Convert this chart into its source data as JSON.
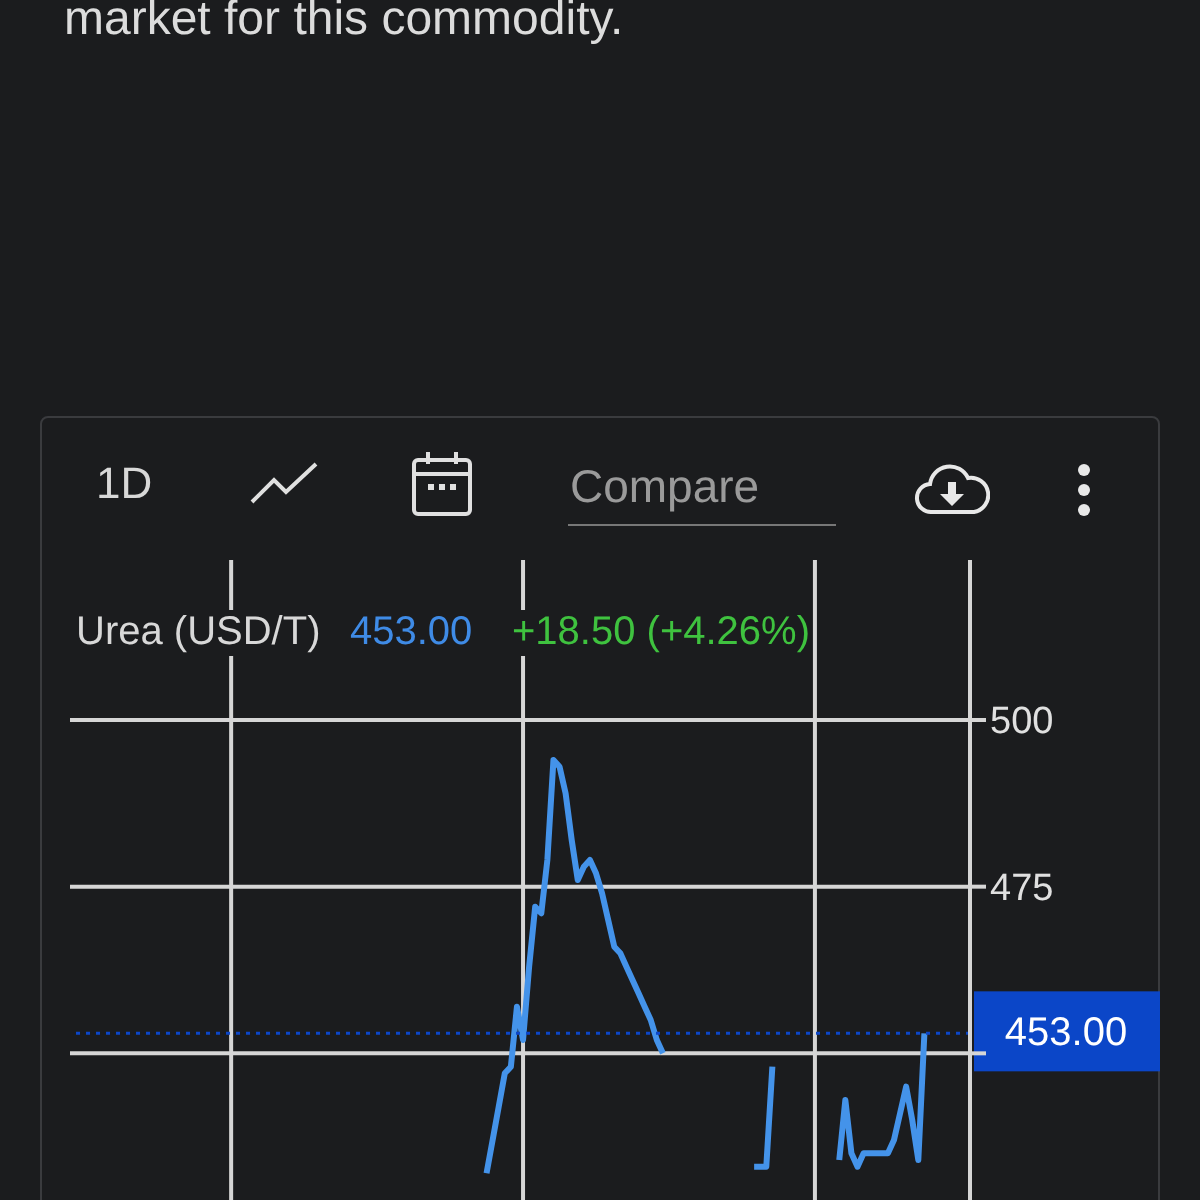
{
  "chart_data": {
    "type": "line",
    "title": "Urea (USD/T)",
    "annotations": [
      "market for this commodity.",
      "1D",
      "Compare",
      "453.00",
      "+18.50 (+4.26%)"
    ],
    "categories": [
      null,
      null,
      null,
      null,
      null,
      null,
      null,
      null,
      null,
      null,
      null,
      null,
      null,
      null,
      null,
      null,
      null,
      null,
      null,
      null,
      null,
      null,
      null,
      null,
      null,
      null,
      null,
      null,
      null,
      null,
      null,
      null,
      null,
      null,
      null,
      null,
      null,
      null,
      null,
      null,
      null,
      null,
      null,
      null,
      null,
      null,
      null,
      null,
      null,
      null,
      null,
      null,
      null,
      null,
      null,
      null,
      null,
      null,
      null,
      null,
      null,
      null,
      null,
      null,
      null,
      null,
      null,
      null,
      null,
      null,
      null,
      null,
      null,
      null,
      null,
      null,
      null,
      null,
      null,
      null,
      null,
      null,
      null,
      null,
      null,
      null,
      null,
      null,
      null,
      null,
      null,
      null,
      null,
      null,
      null,
      null,
      null,
      null,
      null,
      null,
      null,
      null,
      null,
      null,
      null,
      null,
      null,
      null,
      null,
      null,
      null,
      null,
      null,
      null,
      null,
      null,
      null,
      null,
      null,
      null,
      null,
      null,
      null,
      null,
      null,
      null,
      null,
      null,
      null,
      null,
      null,
      null,
      null,
      null,
      null,
      null,
      null,
      null,
      null,
      null,
      null,
      null,
      null,
      null,
      null,
      null,
      null,
      null
    ],
    "series": [
      {
        "color": "#4493ea",
        "values": [
          null,
          null,
          null,
          null,
          null,
          null,
          null,
          null,
          null,
          null,
          null,
          null,
          null,
          null,
          null,
          null,
          null,
          null,
          null,
          null,
          null,
          null,
          null,
          null,
          null,
          null,
          null,
          null,
          null,
          null,
          null,
          null,
          null,
          null,
          null,
          null,
          null,
          null,
          null,
          null,
          null,
          null,
          null,
          null,
          null,
          null,
          null,
          null,
          null,
          null,
          null,
          null,
          null,
          null,
          null,
          null,
          null,
          null,
          null,
          null,
          null,
          null,
          null,
          null,
          null,
          null,
          null,
          null,
          432,
          437,
          442,
          447,
          448,
          457,
          452,
          463,
          472,
          471,
          479,
          494,
          493,
          489,
          482,
          476,
          478,
          479,
          477,
          474,
          470,
          466,
          465,
          463,
          461,
          459,
          457,
          455,
          452,
          450,
          null,
          null,
          null,
          null,
          null,
          null,
          null,
          null,
          null,
          null,
          null,
          null,
          null,
          null,
          433,
          433,
          433,
          448,
          null,
          null,
          null,
          null,
          null,
          null,
          null,
          null,
          null,
          null,
          434,
          443,
          435,
          433,
          435,
          435,
          435,
          435,
          435,
          437,
          441,
          445,
          440,
          434,
          453,
          null,
          null,
          null,
          null,
          null,
          null,
          null
        ]
      }
    ],
    "ylim": [
      428,
      524
    ],
    "yticks": [
      500,
      475,
      {
        "value": 450,
        "label": null
      }
    ],
    "tick_labels": "y",
    "grid": true,
    "marker": "none",
    "line_style": "solid",
    "ref_lines": [
      {
        "axis": "y",
        "value": 453,
        "label": "453.00",
        "color": "#0b46c8",
        "line_style": "dotted"
      }
    ]
  }
}
